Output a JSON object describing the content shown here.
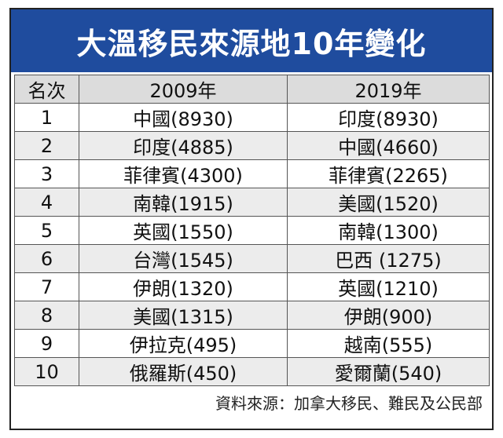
{
  "header": {
    "title": "大溫移民來源地10年變化"
  },
  "table": {
    "columns": [
      "名次",
      "2009年",
      "2019年"
    ],
    "rows": [
      [
        "1",
        "中國(8930)",
        "印度(8930)"
      ],
      [
        "2",
        "印度(4885)",
        "中國(4660)"
      ],
      [
        "3",
        "菲律賓(4300)",
        "菲律賓(2265)"
      ],
      [
        "4",
        "南韓(1915)",
        "美國(1520)"
      ],
      [
        "5",
        "英國(1550)",
        "南韓(1300)"
      ],
      [
        "6",
        "台灣(1545)",
        "巴西 (1275)"
      ],
      [
        "7",
        "伊朗(1320)",
        "英國(1210)"
      ],
      [
        "8",
        "美國(1315)",
        "伊朗(900)"
      ],
      [
        "9",
        "伊拉克(495)",
        "越南(555)"
      ],
      [
        "10",
        "俄羅斯(450)",
        "愛爾蘭(540)"
      ]
    ]
  },
  "footer": {
    "source": "資料來源：加拿大移民、難民及公民部"
  }
}
